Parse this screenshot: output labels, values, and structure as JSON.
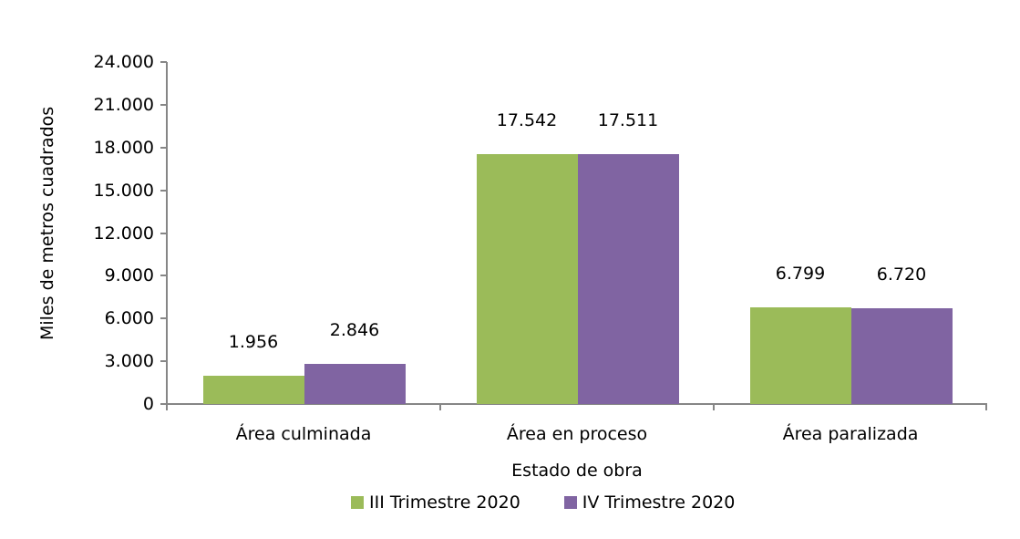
{
  "chart_data": {
    "type": "bar",
    "title": "",
    "xlabel": "Estado de obra",
    "ylabel": "Miles de metros cuadrados",
    "ylim": [
      0,
      24000
    ],
    "yticks": [
      "0",
      "3.000",
      "6.000",
      "9.000",
      "12.000",
      "15.000",
      "18.000",
      "21.000",
      "24.000"
    ],
    "categories": [
      "Área culminada",
      "Área en proceso",
      "Área paralizada"
    ],
    "series": [
      {
        "name": "III Trimestre 2020",
        "color": "#9BBB59",
        "values": [
          1956,
          17542,
          6799
        ],
        "labels": [
          "1.956",
          "17.542",
          "6.799"
        ]
      },
      {
        "name": "IV Trimestre 2020",
        "color": "#8064A2",
        "values": [
          2846,
          17511,
          6720
        ],
        "labels": [
          "2.846",
          "17.511",
          "6.720"
        ]
      }
    ],
    "grid": false,
    "legend_position": "bottom"
  }
}
